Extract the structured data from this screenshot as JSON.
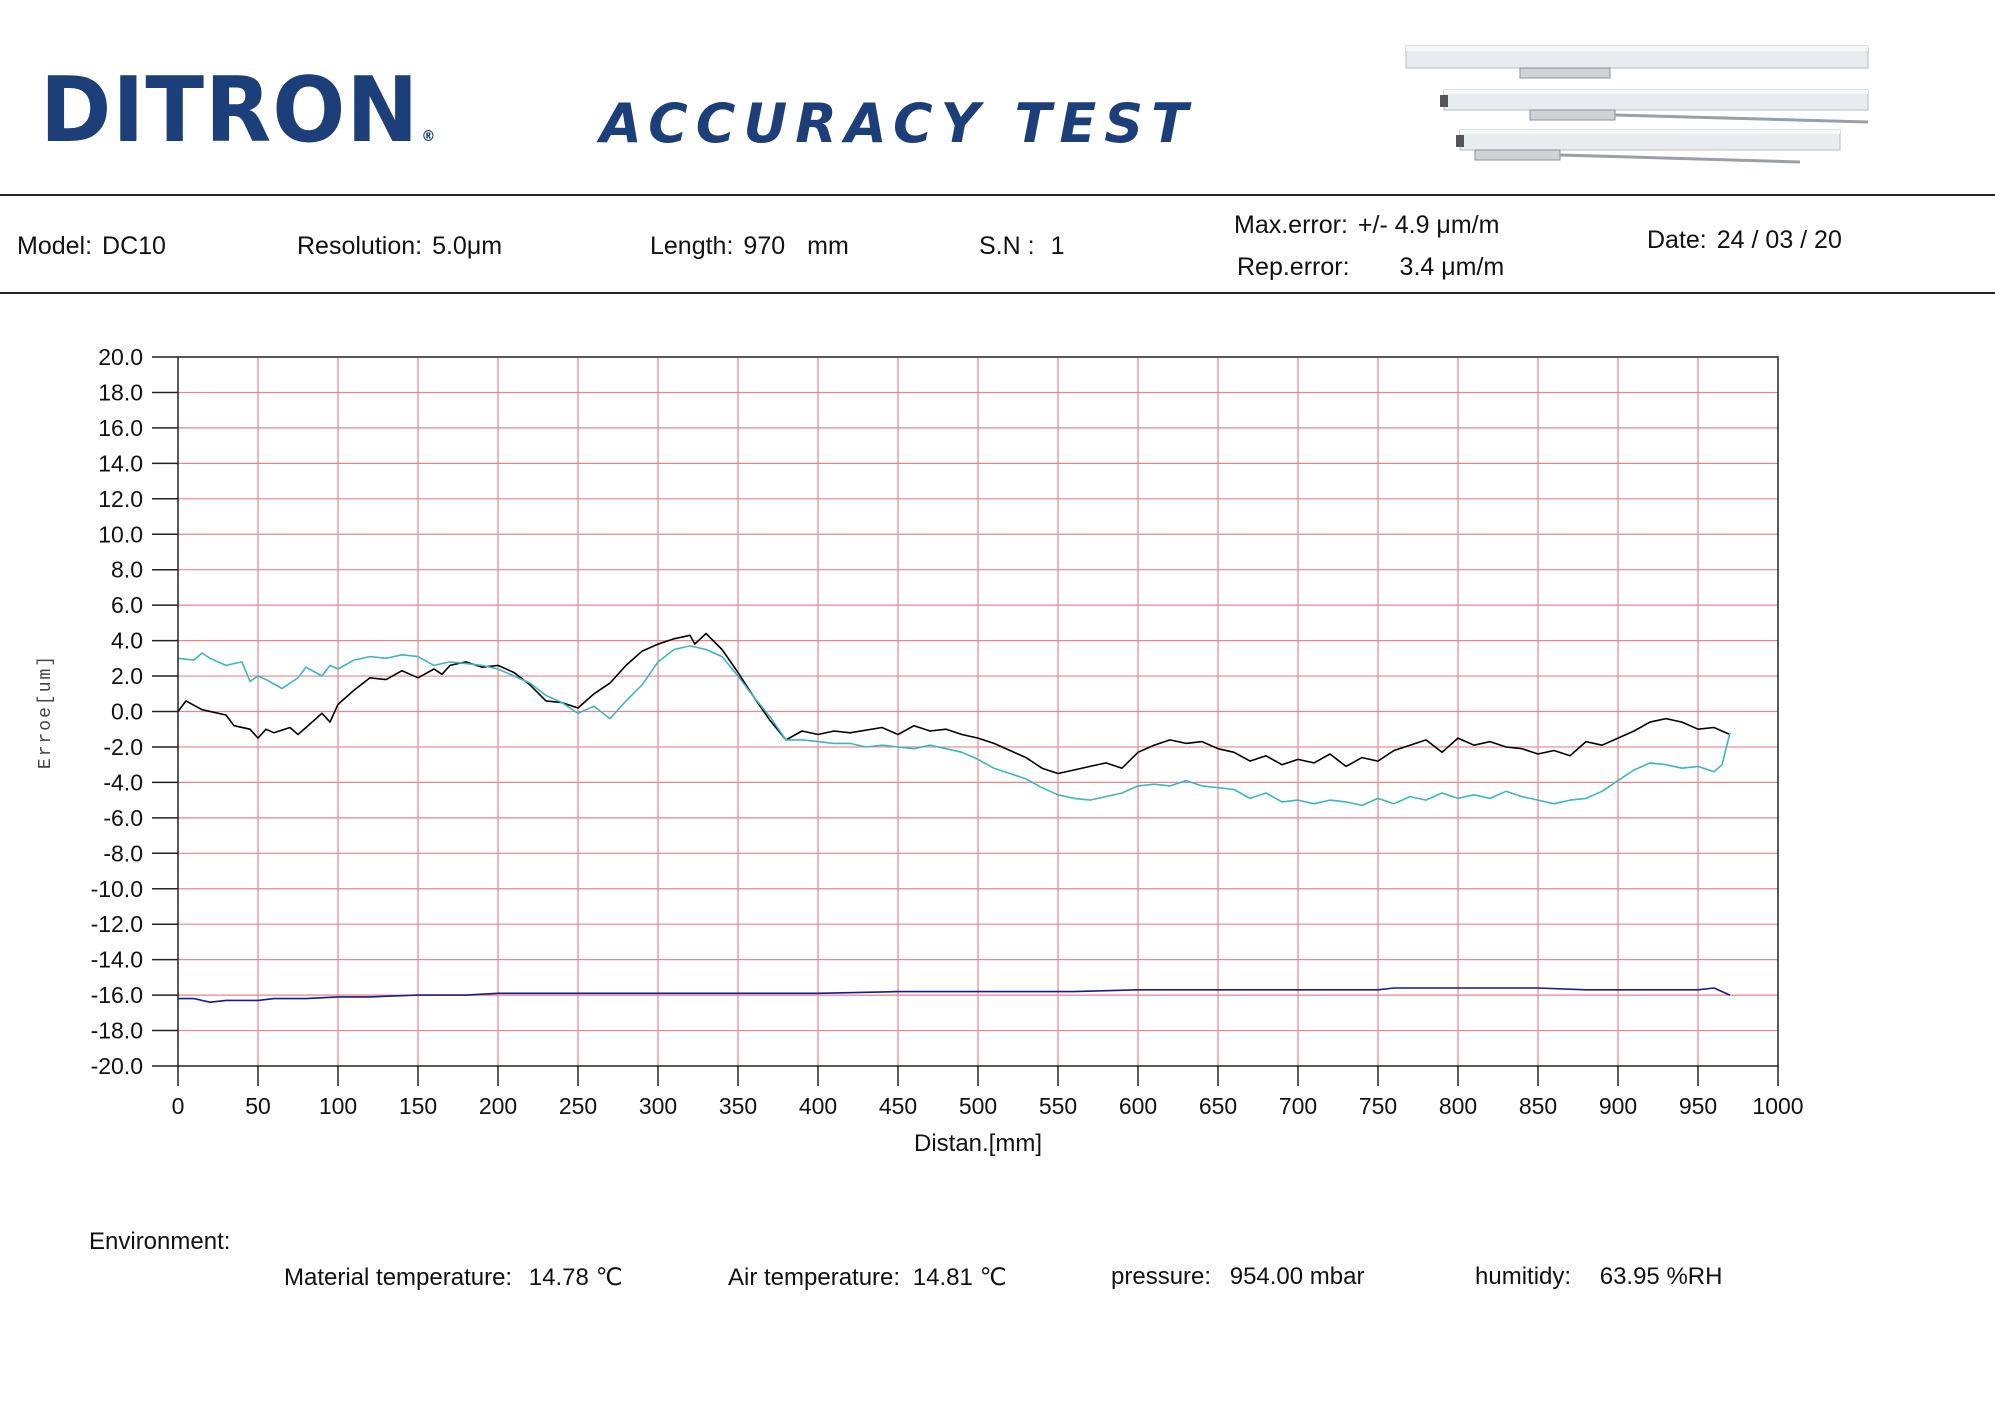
{
  "header": {
    "logo_text": "DITRON",
    "logo_reg": "®",
    "report_title": "ACCURACY TEST"
  },
  "info": {
    "model_label": "Model:",
    "model": "DC10",
    "resolution_label": "Resolution:",
    "resolution": "5.0μm",
    "length_label": "Length:",
    "length": "970",
    "length_unit": "mm",
    "sn_label": "S.N :",
    "sn": "1",
    "max_error_label": "Max.error:",
    "max_error": "+/- 4.9 μm/m",
    "rep_error_label": "Rep.error:",
    "rep_error": "3.4 μm/m",
    "date_label": "Date:",
    "date": "24 / 03 / 20"
  },
  "environment": {
    "title": "Environment:",
    "material_label": "Material temperature:",
    "material_value": "14.78 ℃",
    "air_label": "Air temperature:",
    "air_value": "14.81 ℃",
    "pressure_label": "pressure:",
    "pressure_value": "954.00 mbar",
    "humidity_label": "humitidy:",
    "humidity_value": "63.95 %RH"
  },
  "colors": {
    "grid": "#e8868a",
    "forward": "#000000",
    "backward": "#3ab6c6",
    "repeat": "#1a1a8c",
    "brand": "#1d3f79"
  },
  "chart_data": {
    "type": "line",
    "title": "",
    "xlabel": "Distan.[mm]",
    "ylabel": "Erroe[um]",
    "xlim": [
      0,
      1000
    ],
    "ylim": [
      -20,
      20
    ],
    "xticks": [
      0,
      50,
      100,
      150,
      200,
      250,
      300,
      350,
      400,
      450,
      500,
      550,
      600,
      650,
      700,
      750,
      800,
      850,
      900,
      950,
      1000
    ],
    "yticks": [
      20.0,
      18.0,
      16.0,
      14.0,
      12.0,
      10.0,
      8.0,
      6.0,
      4.0,
      2.0,
      0.0,
      -2.0,
      -4.0,
      -6.0,
      -8.0,
      -10.0,
      -12.0,
      -14.0,
      -16.0,
      -18.0,
      -20.0
    ],
    "grid": true,
    "series": [
      {
        "color_key": "forward",
        "x": [
          0,
          5,
          15,
          30,
          35,
          45,
          50,
          55,
          60,
          70,
          75,
          80,
          90,
          95,
          100,
          110,
          120,
          130,
          140,
          150,
          160,
          165,
          170,
          180,
          190,
          200,
          210,
          220,
          230,
          240,
          250,
          260,
          270,
          280,
          290,
          300,
          310,
          320,
          323,
          330,
          340,
          350,
          360,
          370,
          380,
          390,
          400,
          410,
          420,
          440,
          450,
          460,
          470,
          480,
          490,
          500,
          510,
          520,
          530,
          540,
          550,
          560,
          570,
          580,
          590,
          600,
          610,
          620,
          630,
          640,
          650,
          660,
          670,
          680,
          690,
          700,
          710,
          720,
          730,
          740,
          750,
          760,
          770,
          780,
          790,
          800,
          810,
          820,
          830,
          840,
          850,
          860,
          870,
          880,
          890,
          900,
          910,
          920,
          930,
          940,
          950,
          960,
          970
        ],
        "y": [
          0.0,
          0.6,
          0.1,
          -0.2,
          -0.8,
          -1.0,
          -1.5,
          -1.0,
          -1.2,
          -0.9,
          -1.3,
          -0.9,
          -0.1,
          -0.6,
          0.4,
          1.2,
          1.9,
          1.8,
          2.3,
          1.9,
          2.4,
          2.1,
          2.6,
          2.8,
          2.5,
          2.6,
          2.2,
          1.5,
          0.6,
          0.5,
          0.2,
          1.0,
          1.6,
          2.6,
          3.4,
          3.8,
          4.1,
          4.3,
          3.8,
          4.4,
          3.5,
          2.2,
          0.8,
          -0.5,
          -1.6,
          -1.1,
          -1.3,
          -1.1,
          -1.2,
          -0.9,
          -1.3,
          -0.8,
          -1.1,
          -1.0,
          -1.3,
          -1.5,
          -1.8,
          -2.2,
          -2.6,
          -3.2,
          -3.5,
          -3.3,
          -3.1,
          -2.9,
          -3.2,
          -2.3,
          -1.9,
          -1.6,
          -1.8,
          -1.7,
          -2.1,
          -2.3,
          -2.8,
          -2.5,
          -3.0,
          -2.7,
          -2.9,
          -2.4,
          -3.1,
          -2.6,
          -2.8,
          -2.2,
          -1.9,
          -1.6,
          -2.3,
          -1.5,
          -1.9,
          -1.7,
          -2.0,
          -2.1,
          -2.4,
          -2.2,
          -2.5,
          -1.7,
          -1.9,
          -1.5,
          -1.1,
          -0.6,
          -0.4,
          -0.6,
          -1.0,
          -0.9,
          -1.3
        ]
      },
      {
        "color_key": "backward",
        "x": [
          0,
          10,
          15,
          20,
          30,
          40,
          45,
          50,
          55,
          65,
          75,
          80,
          90,
          95,
          100,
          110,
          120,
          130,
          140,
          150,
          160,
          170,
          180,
          190,
          200,
          210,
          220,
          230,
          240,
          250,
          260,
          270,
          280,
          290,
          300,
          310,
          320,
          330,
          340,
          350,
          360,
          370,
          380,
          390,
          400,
          410,
          420,
          430,
          440,
          450,
          460,
          470,
          480,
          490,
          500,
          510,
          520,
          530,
          540,
          550,
          560,
          570,
          580,
          590,
          600,
          610,
          620,
          630,
          640,
          650,
          660,
          670,
          680,
          690,
          700,
          710,
          720,
          730,
          740,
          750,
          760,
          770,
          780,
          790,
          800,
          810,
          820,
          830,
          840,
          850,
          860,
          870,
          880,
          890,
          900,
          910,
          920,
          930,
          940,
          950,
          960,
          965,
          970
        ],
        "y": [
          3.0,
          2.9,
          3.3,
          3.0,
          2.6,
          2.8,
          1.7,
          2.0,
          1.8,
          1.3,
          1.9,
          2.5,
          2.0,
          2.6,
          2.4,
          2.9,
          3.1,
          3.0,
          3.2,
          3.1,
          2.6,
          2.8,
          2.7,
          2.6,
          2.4,
          2.0,
          1.6,
          0.9,
          0.5,
          -0.1,
          0.3,
          -0.4,
          0.6,
          1.5,
          2.8,
          3.5,
          3.7,
          3.5,
          3.1,
          2.0,
          0.8,
          -0.3,
          -1.6,
          -1.6,
          -1.7,
          -1.8,
          -1.8,
          -2.0,
          -1.9,
          -2.0,
          -2.1,
          -1.9,
          -2.1,
          -2.3,
          -2.7,
          -3.2,
          -3.5,
          -3.8,
          -4.3,
          -4.7,
          -4.9,
          -5.0,
          -4.8,
          -4.6,
          -4.2,
          -4.1,
          -4.2,
          -3.9,
          -4.2,
          -4.3,
          -4.4,
          -4.9,
          -4.6,
          -5.1,
          -5.0,
          -5.2,
          -5.0,
          -5.1,
          -5.3,
          -4.9,
          -5.2,
          -4.8,
          -5.0,
          -4.6,
          -4.9,
          -4.7,
          -4.9,
          -4.5,
          -4.8,
          -5.0,
          -5.2,
          -5.0,
          -4.9,
          -4.5,
          -3.9,
          -3.3,
          -2.9,
          -3.0,
          -3.2,
          -3.1,
          -3.4,
          -3.0,
          -1.2
        ]
      },
      {
        "color_key": "repeat",
        "x": [
          0,
          10,
          20,
          30,
          50,
          60,
          80,
          100,
          120,
          150,
          180,
          200,
          250,
          300,
          325,
          350,
          400,
          450,
          460,
          480,
          500,
          530,
          560,
          600,
          650,
          700,
          750,
          760,
          800,
          820,
          850,
          880,
          900,
          950,
          960,
          970
        ],
        "y": [
          -16.2,
          -16.2,
          -16.4,
          -16.3,
          -16.3,
          -16.2,
          -16.2,
          -16.1,
          -16.1,
          -16.0,
          -16.0,
          -15.9,
          -15.9,
          -15.9,
          -15.9,
          -15.9,
          -15.9,
          -15.8,
          -15.8,
          -15.8,
          -15.8,
          -15.8,
          -15.8,
          -15.7,
          -15.7,
          -15.7,
          -15.7,
          -15.6,
          -15.6,
          -15.6,
          -15.6,
          -15.7,
          -15.7,
          -15.7,
          -15.6,
          -16.0
        ]
      }
    ]
  }
}
